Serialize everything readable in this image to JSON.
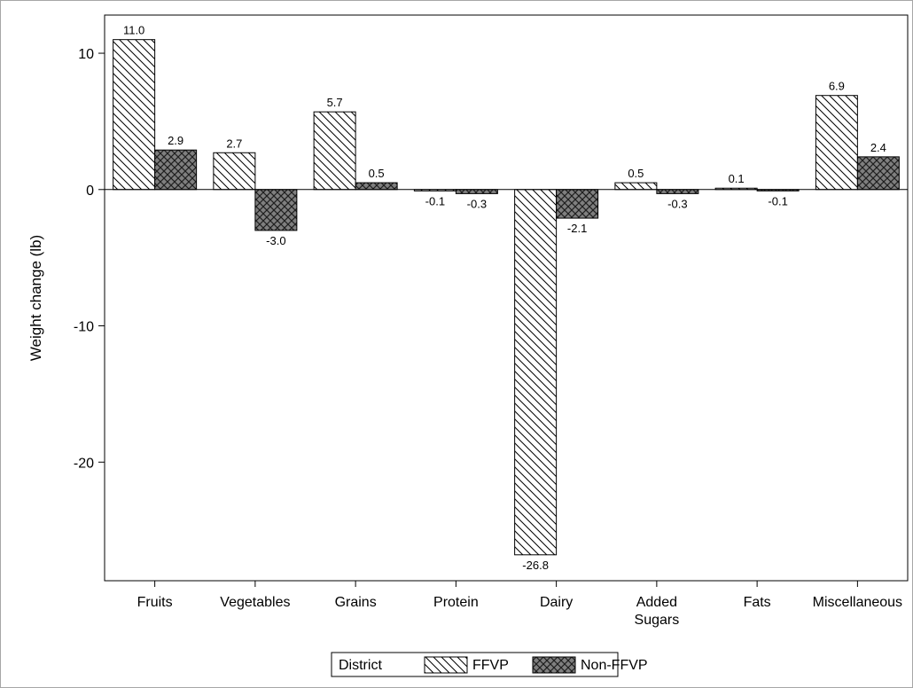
{
  "chart_data": {
    "type": "bar",
    "title": "",
    "xlabel": "",
    "ylabel": "Weight change (lb)",
    "ylim": [
      -28.7,
      12.8
    ],
    "yticks": [
      10,
      0,
      -10,
      -20
    ],
    "grid": false,
    "legend_position": "bottom",
    "legend_title": "District",
    "categories": [
      [
        "Fruits"
      ],
      [
        "Vegetables"
      ],
      [
        "Grains"
      ],
      [
        "Protein"
      ],
      [
        "Dairy"
      ],
      [
        "Added",
        "Sugars"
      ],
      [
        "Fats"
      ],
      [
        "Miscellaneous"
      ]
    ],
    "series": [
      {
        "name": "FFVP",
        "pattern": "diagonal-hatch",
        "fill": "#ffffff",
        "values": [
          11.0,
          2.7,
          5.7,
          -0.1,
          -26.8,
          0.5,
          0.1,
          6.9
        ],
        "labels": [
          "11.0",
          "2.7",
          "5.7",
          "-0.1",
          "-26.8",
          "0.5",
          "0.1",
          "6.9"
        ]
      },
      {
        "name": "Non-FFVP",
        "pattern": "crosshatch",
        "fill": "#7f7f7f",
        "values": [
          2.9,
          -3.0,
          0.5,
          -0.3,
          -2.1,
          -0.3,
          -0.1,
          2.4
        ],
        "labels": [
          "2.9",
          "-3.0",
          "0.5",
          "-0.3",
          "-2.1",
          "-0.3",
          "-0.1",
          "2.4"
        ]
      }
    ]
  }
}
